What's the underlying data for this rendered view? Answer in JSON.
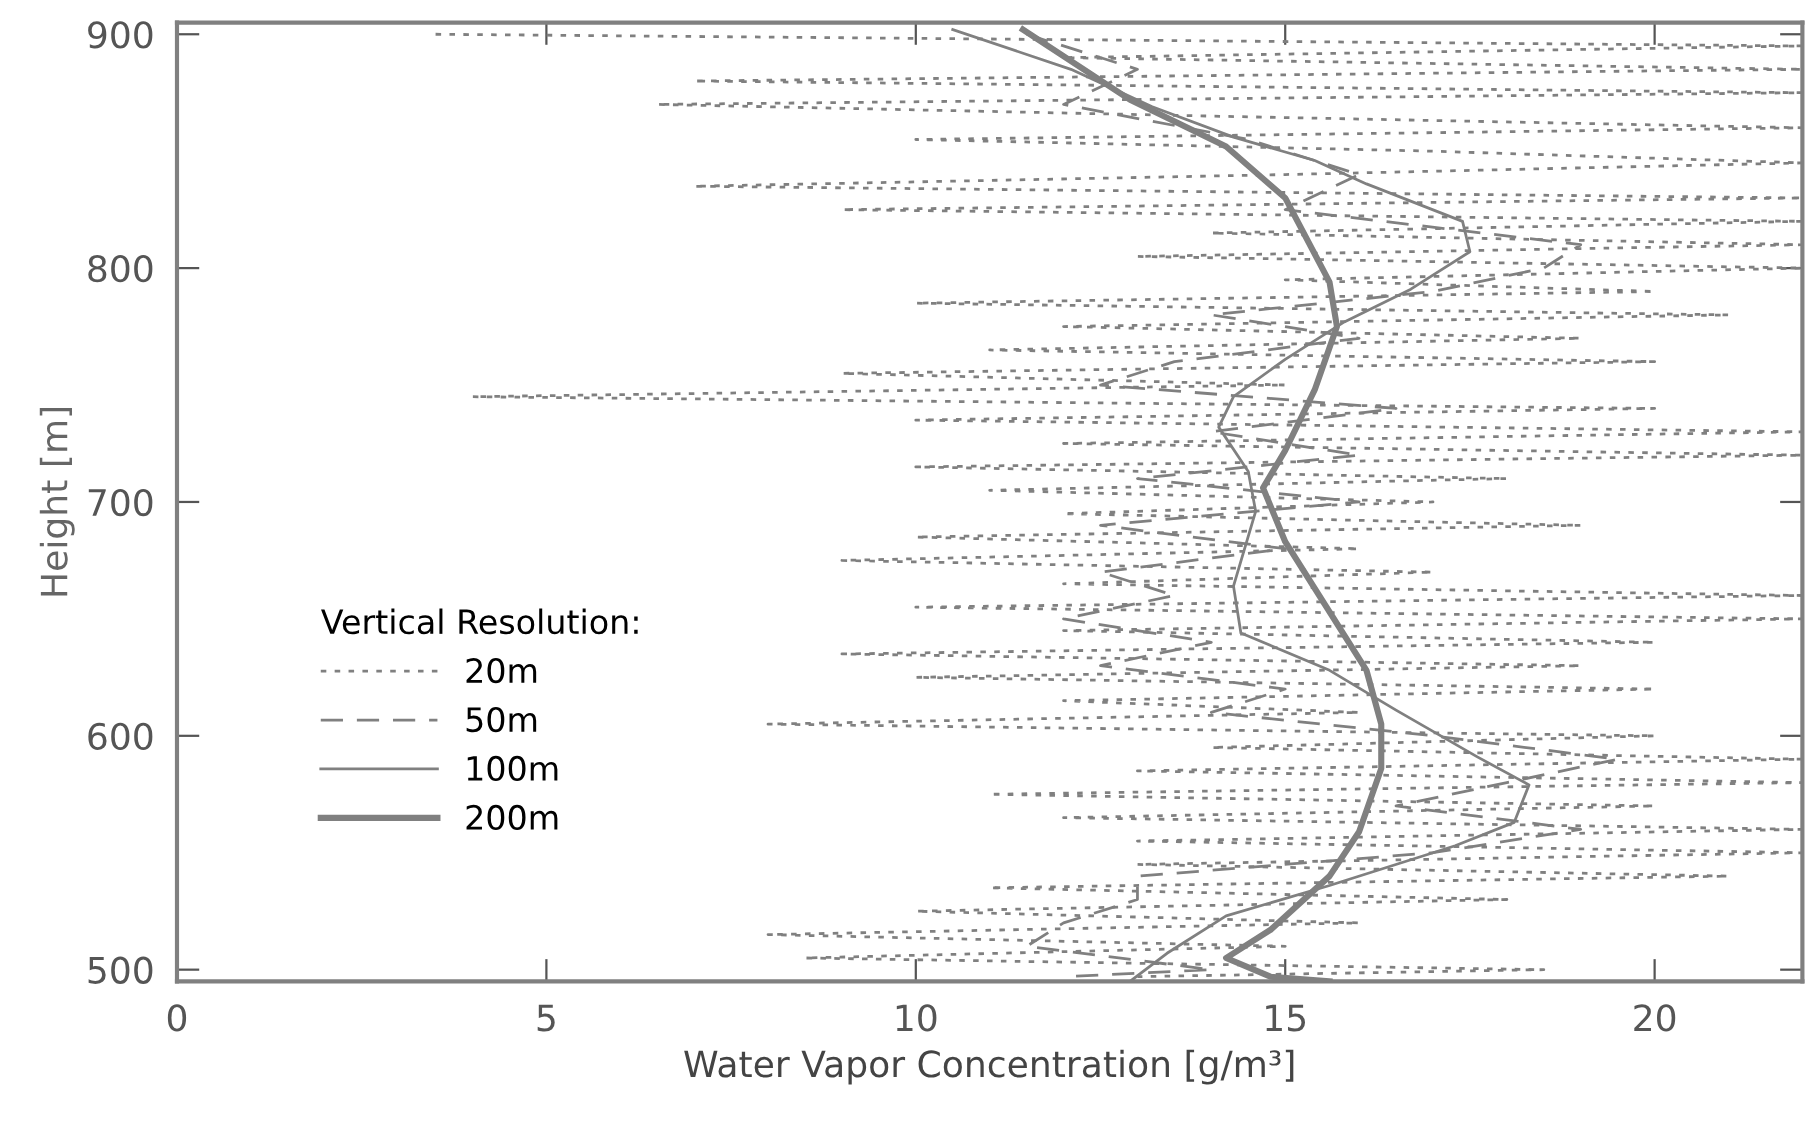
{
  "chart_data": {
    "type": "line",
    "xlabel": "Water Vapor Concentration [g/m³]",
    "ylabel": "Height [m]",
    "legend_title": "Vertical Resolution:",
    "legend": "left",
    "xlim": [
      0,
      22
    ],
    "xticks": [
      0,
      5,
      10,
      15,
      20
    ],
    "ylim": [
      495,
      905
    ],
    "yticks": [
      500,
      600,
      700,
      800,
      900
    ],
    "grid": false,
    "marker": "none",
    "series": [
      {
        "name": "20m",
        "color": "#808080",
        "line_style": "dotted",
        "x": [
          3.5,
          22,
          12,
          22,
          7,
          22,
          6.5,
          14,
          22,
          10,
          17,
          22,
          15,
          7,
          22,
          9,
          22,
          14,
          22,
          13,
          22,
          15,
          20,
          10,
          21,
          12,
          19,
          11,
          20,
          9,
          15,
          4,
          20,
          10,
          22,
          12,
          22,
          10,
          18,
          11,
          17,
          12,
          19,
          10,
          16,
          9,
          17,
          12,
          22,
          10,
          22,
          12,
          20,
          9,
          19,
          10,
          20,
          12,
          16,
          8,
          20,
          14,
          22,
          13,
          22,
          11,
          20,
          12,
          22,
          13,
          22,
          13,
          21,
          11,
          18,
          10,
          16,
          8,
          15,
          8.5,
          18.5,
          13
        ],
        "values": [
          900,
          895,
          890,
          885,
          880,
          875,
          870,
          865,
          860,
          855,
          850,
          845,
          840,
          835,
          830,
          825,
          820,
          815,
          810,
          805,
          800,
          795,
          790,
          785,
          780,
          775,
          770,
          765,
          760,
          755,
          750,
          745,
          740,
          735,
          730,
          725,
          720,
          715,
          710,
          705,
          700,
          695,
          690,
          685,
          680,
          675,
          670,
          665,
          660,
          655,
          650,
          645,
          640,
          635,
          630,
          625,
          620,
          615,
          610,
          605,
          600,
          595,
          590,
          585,
          580,
          575,
          570,
          565,
          560,
          555,
          550,
          545,
          540,
          535,
          530,
          525,
          520,
          515,
          510,
          505,
          500,
          497
        ]
      },
      {
        "name": "50m",
        "color": "#808080",
        "line_style": "dashed",
        "x": [
          11.5,
          13,
          12,
          14.5,
          16,
          15,
          19,
          18.5,
          17,
          14,
          16,
          13.5,
          12.5,
          16.5,
          14,
          16,
          13,
          16,
          12.5,
          15,
          12.5,
          13.5,
          12,
          14,
          12.5,
          15,
          14,
          17,
          19.5,
          18,
          16.5,
          19,
          17,
          13,
          13,
          12,
          11.5,
          14,
          12
        ],
        "values": [
          900,
          885,
          870,
          855,
          840,
          825,
          810,
          800,
          790,
          780,
          770,
          760,
          750,
          740,
          730,
          720,
          710,
          700,
          690,
          680,
          670,
          660,
          650,
          640,
          630,
          620,
          610,
          600,
          590,
          580,
          570,
          560,
          550,
          540,
          530,
          520,
          510,
          500,
          497
        ]
      },
      {
        "name": "100m",
        "color": "#808080",
        "line_style": "solid",
        "x": [
          10.5,
          12.1,
          13.2,
          14.3,
          15.4,
          16.1,
          17.4,
          17.5,
          16.7,
          15.8,
          15.0,
          14.3,
          14.1,
          14.5,
          14.6,
          14.3,
          14.4,
          15.6,
          16.5,
          17.6,
          18.3,
          18.1,
          17.3,
          15.6,
          14.2,
          13.4,
          12.9
        ],
        "values": [
          902,
          885,
          869,
          856,
          846,
          836,
          820,
          807,
          791,
          777,
          761,
          745,
          732,
          713,
          696,
          664,
          644,
          628,
          611,
          591,
          579,
          563,
          553,
          536,
          523,
          507,
          495
        ]
      },
      {
        "name": "200m",
        "color": "#808080",
        "line_style": "solid",
        "x": [
          11.45,
          12.9,
          14.2,
          15.0,
          15.6,
          15.7,
          15.4,
          15.0,
          14.7,
          15.0,
          15.6,
          16.1,
          16.3,
          16.3,
          16.0,
          15.6,
          14.8,
          14.2,
          14.8,
          15.6
        ],
        "values": [
          902,
          872,
          852,
          830,
          794,
          775,
          748,
          722,
          706,
          683,
          653,
          628,
          605,
          586,
          559,
          540,
          517,
          505,
          497,
          495
        ]
      }
    ]
  }
}
